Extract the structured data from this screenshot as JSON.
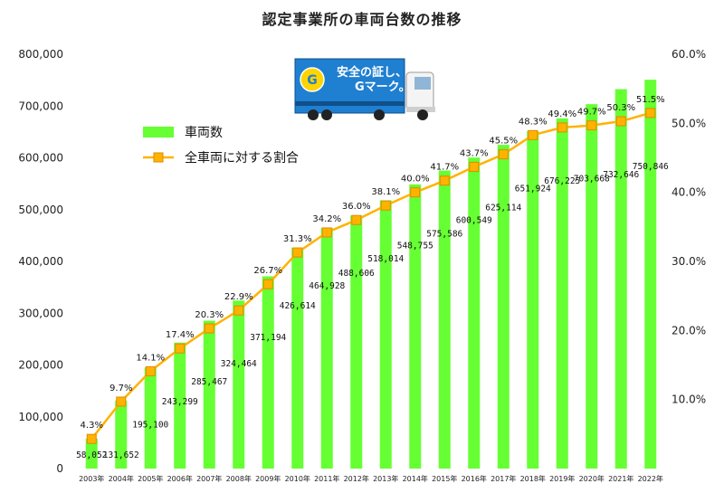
{
  "chart_data": {
    "type": "bar",
    "title": "認定事業所の車両台数の推移",
    "categories": [
      "2003年",
      "2004年",
      "2005年",
      "2006年",
      "2007年",
      "2008年",
      "2009年",
      "2010年",
      "2011年",
      "2012年",
      "2013年",
      "2014年",
      "2015年",
      "2016年",
      "2017年",
      "2018年",
      "2019年",
      "2020年",
      "2021年",
      "2022年"
    ],
    "series": [
      {
        "name": "車両数",
        "type": "bar",
        "axis": "left",
        "color": "#66ff33",
        "values": [
          58052,
          131652,
          195100,
          243299,
          285467,
          324464,
          371194,
          426614,
          464928,
          488606,
          518014,
          548755,
          575586,
          600549,
          625114,
          651924,
          676225,
          703668,
          732646,
          750846
        ],
        "labels": [
          "58,052",
          "131,652",
          "195,100",
          "243,299",
          "285,467",
          "324,464",
          "371,194",
          "426,614",
          "464,928",
          "488,606",
          "518,014",
          "548,755",
          "575,586",
          "600,549",
          "625,114",
          "651,924",
          "676,225",
          "703,668",
          "732,646",
          "750,846"
        ]
      },
      {
        "name": "全車両に対する割合",
        "type": "line",
        "axis": "right",
        "color": "#ffb300",
        "values": [
          4.3,
          9.7,
          14.1,
          17.4,
          20.3,
          22.9,
          26.7,
          31.3,
          34.2,
          36.0,
          38.1,
          40.0,
          41.7,
          43.7,
          45.5,
          48.3,
          49.4,
          49.7,
          50.3,
          51.5
        ],
        "labels": [
          "4.3%",
          "9.7%",
          "14.1%",
          "17.4%",
          "20.3%",
          "22.9%",
          "26.7%",
          "31.3%",
          "34.2%",
          "36.0%",
          "38.1%",
          "40.0%",
          "41.7%",
          "43.7%",
          "45.5%",
          "48.3%",
          "49.4%",
          "49.7%",
          "50.3%",
          "51.5%"
        ]
      }
    ],
    "ylim": [
      0,
      800000
    ],
    "y2lim": [
      0,
      60
    ],
    "yticks": [
      "0",
      "100,000",
      "200,000",
      "300,000",
      "400,000",
      "500,000",
      "600,000",
      "700,000",
      "800,000"
    ],
    "y2ticks": [
      "10.0%",
      "20.0%",
      "30.0%",
      "40.0%",
      "50.0%",
      "60.0%"
    ],
    "y2tick_values": [
      10,
      20,
      30,
      40,
      50,
      60
    ],
    "legend_position": "upper-left",
    "grid": false
  },
  "image": {
    "line1": "安全の証し、",
    "line2": "Gマーク。",
    "badge": "G"
  }
}
